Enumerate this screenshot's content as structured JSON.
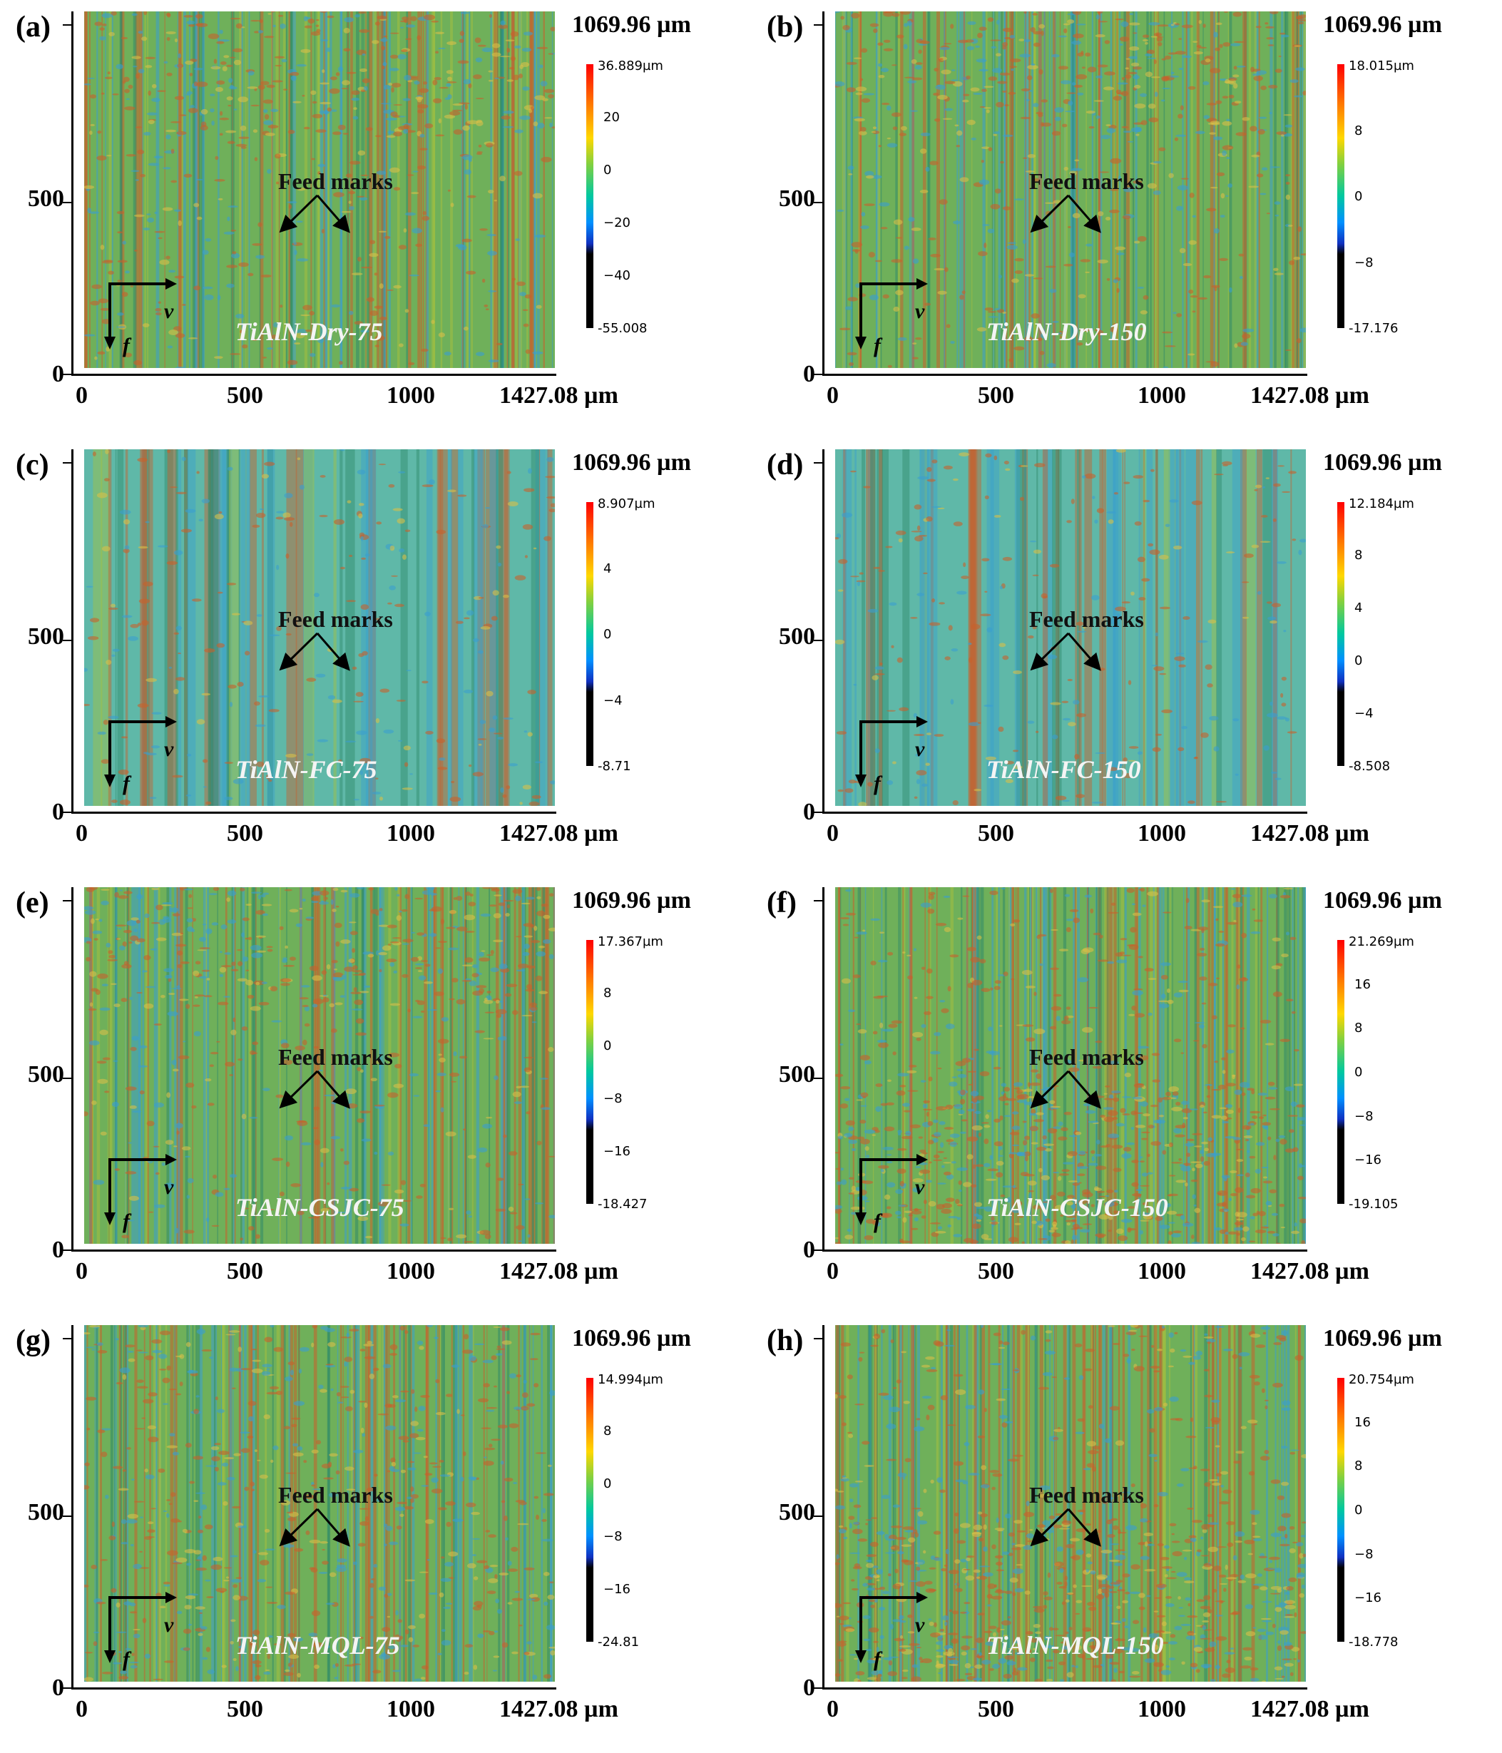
{
  "common": {
    "y_top_label": "1069.96 µm",
    "y_ticks": [
      "500",
      "0"
    ],
    "x_ticks": [
      "0",
      "500",
      "1000",
      "1427.08 µm"
    ],
    "annotation": "Feed marks",
    "velocity_symbol": "v",
    "feed_symbol": "f"
  },
  "colors": {
    "surface_green": "#6fb05a",
    "surface_red": "#c8602c",
    "surface_blue": "#3a9fcf",
    "sample_text": "#f4f4f4"
  },
  "panels": [
    {
      "label": "(a)",
      "sample": "TiAlN-Dry-75",
      "cbar_top": "36.889µm",
      "cbar_bottom": "-55.008",
      "cbar_ticks": [
        "20",
        "0",
        "−20",
        "−40"
      ],
      "style": "dry"
    },
    {
      "label": "(b)",
      "sample": "TiAlN-Dry-150",
      "cbar_top": "18.015µm",
      "cbar_bottom": "-17.176",
      "cbar_ticks": [
        "8",
        "0",
        "−8"
      ],
      "style": "dry"
    },
    {
      "label": "(c)",
      "sample": "TiAlN-FC-75",
      "cbar_top": "8.907µm",
      "cbar_bottom": "-8.71",
      "cbar_ticks": [
        "4",
        "0",
        "−4"
      ],
      "style": "fc"
    },
    {
      "label": "(d)",
      "sample": "TiAlN-FC-150",
      "cbar_top": "12.184µm",
      "cbar_bottom": "-8.508",
      "cbar_ticks": [
        "8",
        "4",
        "0",
        "−4"
      ],
      "style": "fc"
    },
    {
      "label": "(e)",
      "sample": "TiAlN-CSJC-75",
      "cbar_top": "17.367µm",
      "cbar_bottom": "-18.427",
      "cbar_ticks": [
        "8",
        "0",
        "−8",
        "−16"
      ],
      "style": "dry"
    },
    {
      "label": "(f)",
      "sample": "TiAlN-CSJC-150",
      "cbar_top": "21.269µm",
      "cbar_bottom": "-19.105",
      "cbar_ticks": [
        "16",
        "8",
        "0",
        "−8",
        "−16"
      ],
      "style": "rough"
    },
    {
      "label": "(g)",
      "sample": "TiAlN-MQL-75",
      "cbar_top": "14.994µm",
      "cbar_bottom": "-24.81",
      "cbar_ticks": [
        "8",
        "0",
        "−8",
        "−16"
      ],
      "style": "mql"
    },
    {
      "label": "(h)",
      "sample": "TiAlN-MQL-150",
      "cbar_top": "20.754µm",
      "cbar_bottom": "-18.778",
      "cbar_ticks": [
        "16",
        "8",
        "0",
        "−8",
        "−16"
      ],
      "style": "rough"
    }
  ]
}
